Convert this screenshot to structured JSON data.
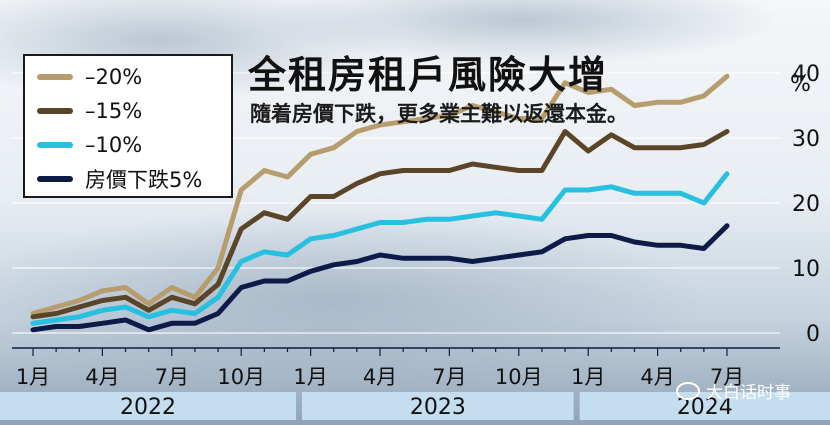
{
  "header": {
    "title": "全租房租戶風險大增",
    "subtitle": "隨着房價下跌，更多業主難以返還本金。",
    "unit": "%"
  },
  "legend": {
    "items": [
      {
        "label": "–20%",
        "color": "#b79d6d"
      },
      {
        "label": "–15%",
        "color": "#5a4528"
      },
      {
        "label": "–10%",
        "color": "#27c0e0"
      },
      {
        "label": "房價下跌5%",
        "color": "#0e1a48"
      }
    ]
  },
  "watermark": {
    "text": "大白话时事"
  },
  "chart_data": {
    "type": "line",
    "title": "全租房租戶風險大增",
    "subtitle": "隨着房價下跌，更多業主難以返還本金。",
    "ylabel": "%",
    "ylim": [
      -2,
      42
    ],
    "yticks": [
      0,
      10,
      20,
      30,
      40
    ],
    "grid": true,
    "legend_position": "top-left",
    "x": [
      "2022-01",
      "2022-02",
      "2022-03",
      "2022-04",
      "2022-05",
      "2022-06",
      "2022-07",
      "2022-08",
      "2022-09",
      "2022-10",
      "2022-11",
      "2022-12",
      "2023-01",
      "2023-02",
      "2023-03",
      "2023-04",
      "2023-05",
      "2023-06",
      "2023-07",
      "2023-08",
      "2023-09",
      "2023-10",
      "2023-11",
      "2023-12",
      "2024-01",
      "2024-02",
      "2024-03",
      "2024-04",
      "2024-05",
      "2024-06",
      "2024-07"
    ],
    "xtick_labels": [
      "1月",
      "4月",
      "7月",
      "10月",
      "1月",
      "4月",
      "7月",
      "10月",
      "1月",
      "4月",
      "7月"
    ],
    "year_labels": [
      "2022",
      "2023",
      "2024"
    ],
    "series": [
      {
        "name": "–20%",
        "color": "#b79d6d",
        "values": [
          3,
          4,
          5,
          6.5,
          7,
          4.5,
          7,
          5.5,
          10,
          22,
          25,
          24,
          27.5,
          28.5,
          31,
          32,
          32.5,
          33,
          33.5,
          35,
          34,
          33,
          33,
          38.5,
          37,
          37.5,
          35,
          35.5,
          35.5,
          36.5,
          39.5
        ]
      },
      {
        "name": "–15%",
        "color": "#5a4528",
        "values": [
          2.5,
          3,
          4,
          5,
          5.5,
          3.5,
          5.5,
          4.5,
          7.5,
          16,
          18.5,
          17.5,
          21,
          21,
          23,
          24.5,
          25,
          25,
          25,
          26,
          25.5,
          25,
          25,
          31,
          28,
          30.5,
          28.5,
          28.5,
          28.5,
          29,
          31
        ]
      },
      {
        "name": "–10%",
        "color": "#27c0e0",
        "values": [
          1.5,
          2,
          2.5,
          3.5,
          4,
          2.5,
          3.5,
          3,
          5.5,
          11,
          12.5,
          12,
          14.5,
          15,
          16,
          17,
          17,
          17.5,
          17.5,
          18,
          18.5,
          18,
          17.5,
          22,
          22,
          22.5,
          21.5,
          21.5,
          21.5,
          20,
          24.5
        ]
      },
      {
        "name": "房價下跌5%",
        "color": "#0e1a48",
        "values": [
          0.5,
          1,
          1,
          1.5,
          2,
          0.5,
          1.5,
          1.5,
          3,
          7,
          8,
          8,
          9.5,
          10.5,
          11,
          12,
          11.5,
          11.5,
          11.5,
          11,
          11.5,
          12,
          12.5,
          14.5,
          15,
          15,
          14,
          13.5,
          13.5,
          13,
          16.5
        ]
      }
    ]
  }
}
